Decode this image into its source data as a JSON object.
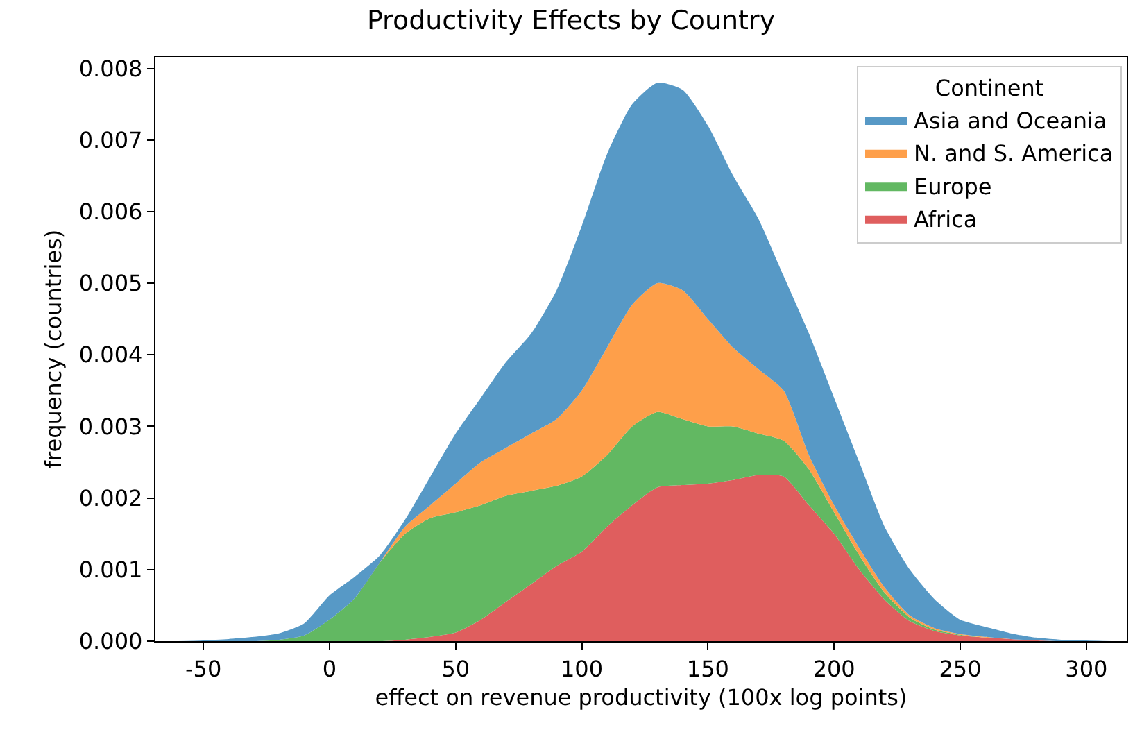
{
  "chart_data": {
    "type": "area",
    "stacked": true,
    "title": "Productivity Effects by Country",
    "xlabel": "effect on revenue productivity (100x log points)",
    "ylabel": "frequency (countries)",
    "legend_title": "Continent",
    "legend": "top right",
    "x": [
      -60,
      -50,
      -40,
      -30,
      -20,
      -10,
      0,
      10,
      20,
      30,
      40,
      50,
      60,
      70,
      80,
      90,
      100,
      110,
      120,
      130,
      140,
      150,
      160,
      170,
      180,
      190,
      200,
      210,
      220,
      230,
      240,
      250,
      260,
      270,
      280,
      290,
      300,
      310
    ],
    "series": [
      {
        "name": "Africa",
        "color": "#df5e5e",
        "values": [
          0,
          0,
          0,
          0,
          0,
          0,
          0,
          0,
          0,
          2e-05,
          6e-05,
          0.00012,
          0.0003,
          0.00055,
          0.0008,
          0.00105,
          0.00125,
          0.0016,
          0.0019,
          0.00215,
          0.00218,
          0.0022,
          0.00225,
          0.00232,
          0.0023,
          0.0019,
          0.0015,
          0.001,
          0.00058,
          0.00028,
          0.00014,
          8e-05,
          5e-05,
          3e-05,
          1e-05,
          0,
          0,
          0
        ]
      },
      {
        "name": "Europe",
        "color": "#62b862",
        "values": [
          0,
          0,
          0,
          0,
          2e-05,
          8e-05,
          0.0003,
          0.0006,
          0.0011,
          0.00148,
          0.00166,
          0.00168,
          0.0016,
          0.00148,
          0.0013,
          0.00112,
          0.00105,
          0.001,
          0.0011,
          0.00105,
          0.00092,
          0.0008,
          0.00075,
          0.00058,
          0.0005,
          0.0005,
          0.0003,
          0.0002,
          0.0001,
          5e-05,
          2e-05,
          1e-05,
          0,
          0,
          0,
          0,
          0,
          0
        ]
      },
      {
        "name": "N. and S. America",
        "color": "#fe9f4a",
        "values": [
          0,
          0,
          0,
          0,
          0,
          0,
          0,
          0,
          0,
          0.0001,
          0.00018,
          0.0004,
          0.0006,
          0.00067,
          0.0008,
          0.00093,
          0.0012,
          0.0015,
          0.0017,
          0.0018,
          0.0018,
          0.0015,
          0.0011,
          0.0009,
          0.0007,
          0.0002,
          0.0001,
          0.0001,
          7e-05,
          3e-05,
          2e-05,
          1e-05,
          1e-05,
          0,
          0,
          0,
          0,
          0
        ]
      },
      {
        "name": "Asia and Oceania",
        "color": "#5799c6",
        "values": [
          0,
          1e-05,
          3e-05,
          6e-05,
          9e-05,
          0.00017,
          0.00034,
          0.0003,
          0.0001,
          0.0001,
          0.0004,
          0.0007,
          0.0009,
          0.0012,
          0.0014,
          0.0018,
          0.0023,
          0.0027,
          0.0028,
          0.0028,
          0.0028,
          0.0027,
          0.0024,
          0.0021,
          0.0016,
          0.0017,
          0.0015,
          0.0012,
          0.00085,
          0.00064,
          0.0004,
          0.0002,
          0.00014,
          8e-05,
          4e-05,
          2e-05,
          1e-05,
          0
        ]
      }
    ],
    "xlim": [
      -69,
      316
    ],
    "xticks": [
      -50,
      0,
      50,
      100,
      150,
      200,
      250,
      300
    ],
    "ylim": [
      0,
      0.00816
    ],
    "yticks": [
      {
        "value": 0,
        "label": "0.000"
      },
      {
        "value": 0.001,
        "label": "0.001"
      },
      {
        "value": 0.002,
        "label": "0.002"
      },
      {
        "value": 0.003,
        "label": "0.003"
      },
      {
        "value": 0.004,
        "label": "0.004"
      },
      {
        "value": 0.005,
        "label": "0.005"
      },
      {
        "value": 0.006,
        "label": "0.006"
      },
      {
        "value": 0.007,
        "label": "0.007"
      },
      {
        "value": 0.008,
        "label": "0.008"
      }
    ]
  }
}
